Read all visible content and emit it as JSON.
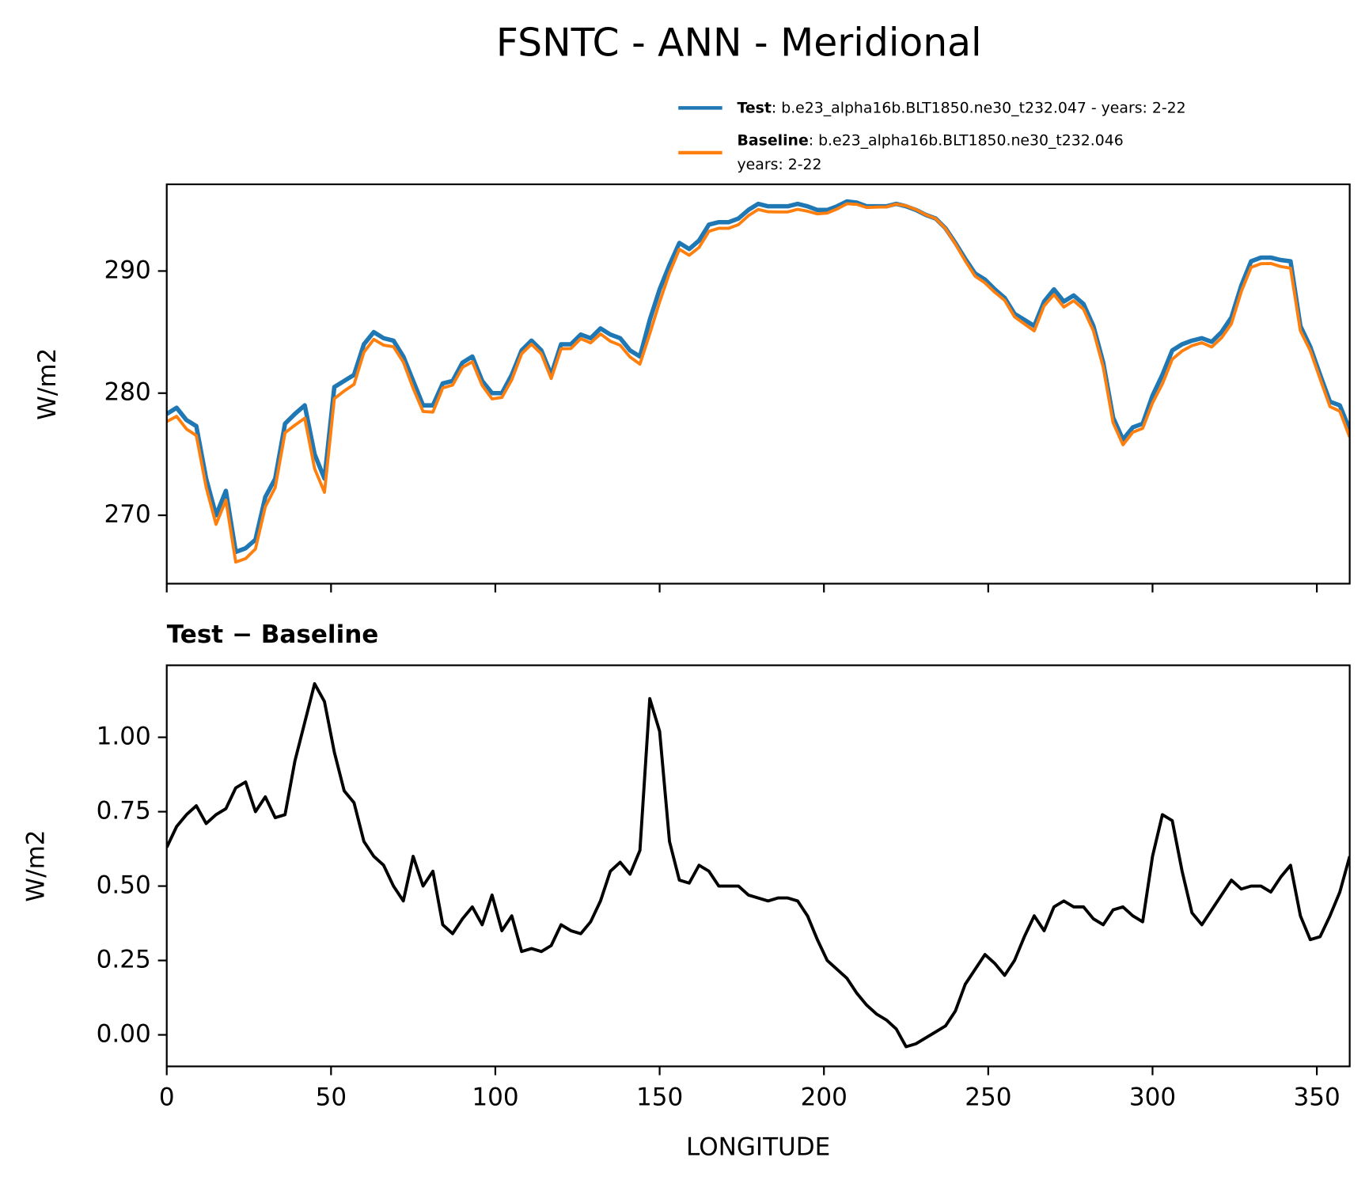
{
  "chart_data": [
    {
      "type": "line",
      "title": "FSNTC - ANN - Meridional",
      "ylabel": "W/m2",
      "x": [
        0,
        3,
        6,
        9,
        12,
        15,
        18,
        21,
        24,
        27,
        30,
        33,
        36,
        39,
        42,
        45,
        48,
        51,
        54,
        57,
        60,
        63,
        66,
        69,
        72,
        75,
        78,
        81,
        84,
        87,
        90,
        93,
        96,
        99,
        102,
        105,
        108,
        111,
        114,
        117,
        120,
        123,
        126,
        129,
        132,
        135,
        138,
        141,
        144,
        147,
        150,
        153,
        156,
        159,
        162,
        165,
        168,
        171,
        174,
        177,
        180,
        183,
        186,
        189,
        192,
        195,
        198,
        201,
        204,
        207,
        210,
        213,
        216,
        219,
        222,
        225,
        228,
        231,
        234,
        237,
        240,
        243,
        246,
        249,
        252,
        255,
        258,
        261,
        264,
        267,
        270,
        273,
        276,
        279,
        282,
        285,
        288,
        291,
        294,
        297,
        300,
        303,
        306,
        309,
        312,
        315,
        318,
        321,
        324,
        327,
        330,
        333,
        336,
        339,
        342,
        345,
        348,
        351,
        354,
        357,
        360
      ],
      "series": [
        {
          "name": "Test",
          "description": [
            ": b.e23_alpha16b.BLT1850.ne30_t232.047 - years: 2-22"
          ],
          "color": "#1f77b4",
          "values": [
            278.3,
            278.8,
            277.8,
            277.3,
            273.0,
            270.0,
            272.0,
            267.0,
            267.3,
            268.0,
            271.5,
            273.0,
            277.5,
            278.3,
            279.0,
            275.0,
            273.0,
            280.5,
            281.0,
            281.5,
            284.0,
            285.0,
            284.5,
            284.3,
            283.0,
            281.0,
            279.0,
            279.0,
            280.8,
            281.0,
            282.5,
            283.0,
            281.0,
            280.0,
            280.0,
            281.5,
            283.5,
            284.3,
            283.5,
            281.5,
            284.0,
            284.0,
            284.8,
            284.5,
            285.3,
            284.8,
            284.5,
            283.5,
            283.0,
            286.0,
            288.5,
            290.5,
            292.3,
            291.8,
            292.5,
            293.8,
            294.0,
            294.0,
            294.3,
            295.0,
            295.5,
            295.3,
            295.3,
            295.3,
            295.5,
            295.3,
            295.0,
            295.0,
            295.3,
            295.7,
            295.6,
            295.3,
            295.3,
            295.3,
            295.5,
            295.3,
            295.0,
            294.6,
            294.3,
            293.5,
            292.3,
            291.0,
            289.8,
            289.3,
            288.5,
            287.8,
            286.5,
            286.0,
            285.5,
            287.5,
            288.5,
            287.5,
            288.0,
            287.3,
            285.5,
            282.5,
            278.0,
            276.2,
            277.2,
            277.5,
            279.8,
            281.5,
            283.5,
            284.0,
            284.3,
            284.5,
            284.2,
            285.0,
            286.2,
            288.8,
            290.8,
            291.1,
            291.1,
            290.9,
            290.8,
            285.5,
            283.8,
            281.5,
            279.3,
            279.0,
            277.0
          ]
        },
        {
          "name": "Baseline",
          "description": [
            ": b.e23_alpha16b.BLT1850.ne30_t232.046",
            "years: 2-22"
          ],
          "color": "#ff7f0e",
          "values": [
            277.67,
            278.1,
            277.06,
            276.53,
            272.29,
            269.26,
            271.24,
            266.17,
            266.45,
            267.25,
            270.7,
            272.27,
            276.76,
            277.38,
            277.95,
            273.82,
            271.88,
            279.55,
            280.18,
            280.72,
            283.35,
            284.4,
            283.93,
            283.8,
            282.55,
            280.4,
            278.5,
            278.45,
            280.43,
            280.66,
            282.11,
            282.57,
            280.63,
            279.53,
            279.65,
            281.1,
            283.22,
            284.01,
            283.22,
            281.2,
            283.63,
            283.65,
            284.46,
            284.12,
            284.85,
            284.25,
            283.92,
            282.96,
            282.38,
            284.87,
            287.48,
            289.85,
            291.78,
            291.29,
            291.93,
            293.25,
            293.5,
            293.5,
            293.8,
            294.53,
            295.04,
            294.85,
            294.84,
            294.84,
            295.05,
            294.9,
            294.68,
            294.75,
            295.08,
            295.51,
            295.46,
            295.2,
            295.23,
            295.25,
            295.48,
            295.34,
            295.03,
            294.61,
            294.29,
            293.47,
            292.22,
            290.83,
            289.58,
            289.03,
            288.26,
            287.6,
            286.25,
            285.67,
            285.1,
            287.15,
            288.07,
            287.05,
            287.57,
            286.87,
            285.11,
            282.13,
            277.58,
            275.77,
            276.8,
            277.12,
            279.2,
            280.76,
            282.78,
            283.45,
            283.89,
            284.13,
            283.78,
            284.53,
            285.68,
            288.31,
            290.3,
            290.6,
            290.62,
            290.37,
            290.23,
            285.1,
            283.48,
            281.17,
            278.9,
            278.52,
            276.4
          ]
        }
      ],
      "xlim": [
        0,
        360
      ],
      "xticks": [
        0,
        50,
        100,
        150,
        200,
        250,
        300,
        350
      ],
      "ylim": [
        264.4,
        297.1
      ],
      "yticks": [
        270,
        280,
        290
      ]
    },
    {
      "type": "line",
      "title": "Test − Baseline",
      "ylabel": "W/m2",
      "xlabel": "LONGITUDE",
      "x": [
        0,
        3,
        6,
        9,
        12,
        15,
        18,
        21,
        24,
        27,
        30,
        33,
        36,
        39,
        42,
        45,
        48,
        51,
        54,
        57,
        60,
        63,
        66,
        69,
        72,
        75,
        78,
        81,
        84,
        87,
        90,
        93,
        96,
        99,
        102,
        105,
        108,
        111,
        114,
        117,
        120,
        123,
        126,
        129,
        132,
        135,
        138,
        141,
        144,
        147,
        150,
        153,
        156,
        159,
        162,
        165,
        168,
        171,
        174,
        177,
        180,
        183,
        186,
        189,
        192,
        195,
        198,
        201,
        204,
        207,
        210,
        213,
        216,
        219,
        222,
        225,
        228,
        231,
        234,
        237,
        240,
        243,
        246,
        249,
        252,
        255,
        258,
        261,
        264,
        267,
        270,
        273,
        276,
        279,
        282,
        285,
        288,
        291,
        294,
        297,
        300,
        303,
        306,
        309,
        312,
        315,
        318,
        321,
        324,
        327,
        330,
        333,
        336,
        339,
        342,
        345,
        348,
        351,
        354,
        357,
        360
      ],
      "series": [
        {
          "color": "#000000",
          "values": [
            0.63,
            0.7,
            0.74,
            0.77,
            0.71,
            0.74,
            0.76,
            0.83,
            0.85,
            0.75,
            0.8,
            0.73,
            0.74,
            0.92,
            1.05,
            1.18,
            1.12,
            0.95,
            0.82,
            0.78,
            0.65,
            0.6,
            0.57,
            0.5,
            0.45,
            0.6,
            0.5,
            0.55,
            0.37,
            0.34,
            0.39,
            0.43,
            0.37,
            0.47,
            0.35,
            0.4,
            0.28,
            0.29,
            0.28,
            0.3,
            0.37,
            0.35,
            0.34,
            0.38,
            0.45,
            0.55,
            0.58,
            0.54,
            0.62,
            1.13,
            1.02,
            0.65,
            0.52,
            0.51,
            0.57,
            0.55,
            0.5,
            0.5,
            0.5,
            0.47,
            0.46,
            0.45,
            0.46,
            0.46,
            0.45,
            0.4,
            0.32,
            0.25,
            0.22,
            0.19,
            0.14,
            0.1,
            0.07,
            0.05,
            0.02,
            -0.04,
            -0.03,
            -0.01,
            0.01,
            0.03,
            0.08,
            0.17,
            0.22,
            0.27,
            0.24,
            0.2,
            0.25,
            0.33,
            0.4,
            0.35,
            0.43,
            0.45,
            0.43,
            0.43,
            0.39,
            0.37,
            0.42,
            0.43,
            0.4,
            0.38,
            0.6,
            0.74,
            0.72,
            0.55,
            0.41,
            0.37,
            0.42,
            0.47,
            0.52,
            0.49,
            0.5,
            0.5,
            0.48,
            0.53,
            0.57,
            0.4,
            0.32,
            0.33,
            0.4,
            0.48,
            0.6
          ]
        }
      ],
      "xlim": [
        0,
        360
      ],
      "xticks": [
        0,
        50,
        100,
        150,
        200,
        250,
        300,
        350
      ],
      "ylim": [
        -0.106,
        1.242
      ],
      "yticks": [
        {
          "value": 0,
          "label": "0.00"
        },
        {
          "value": 0.25,
          "label": "0.25"
        },
        {
          "value": 0.5,
          "label": "0.50"
        },
        {
          "value": 0.75,
          "label": "0.75"
        },
        {
          "value": 1,
          "label": "1.00"
        }
      ]
    }
  ]
}
